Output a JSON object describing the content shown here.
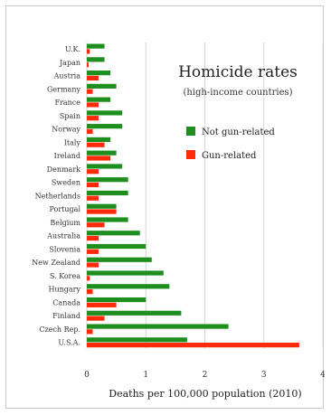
{
  "chart_data": {
    "type": "bar",
    "orientation": "horizontal",
    "title": "Homicide rates",
    "subtitle": "(high-income countries)",
    "xlabel": "Deaths per 100,000 population (2010)",
    "ylabel": "",
    "xlim": [
      0,
      4
    ],
    "x_ticks": [
      0,
      1,
      2,
      3,
      4
    ],
    "grid": "vertical",
    "legend_position": "top-right",
    "categories": [
      "U.K.",
      "Japan",
      "Austria",
      "Germany",
      "France",
      "Spain",
      "Norway",
      "Italy",
      "Ireland",
      "Denmark",
      "Sweden",
      "Netherlands",
      "Portugal",
      "Belgium",
      "Australia",
      "Slovenia",
      "New Zealand",
      "S. Korea",
      "Hungary",
      "Canada",
      "Finland",
      "Czech Rep.",
      "U.S.A."
    ],
    "series": [
      {
        "name": "Not gun-related",
        "color": "#1e8f1e",
        "values": [
          0.3,
          0.3,
          0.4,
          0.5,
          0.4,
          0.6,
          0.6,
          0.4,
          0.5,
          0.6,
          0.7,
          0.7,
          0.5,
          0.7,
          0.9,
          1.0,
          1.1,
          1.3,
          1.4,
          1.0,
          1.6,
          2.4,
          1.7
        ]
      },
      {
        "name": "Gun-related",
        "color": "#ff2a0a",
        "values": [
          0.05,
          0.03,
          0.2,
          0.1,
          0.2,
          0.2,
          0.1,
          0.3,
          0.4,
          0.2,
          0.2,
          0.2,
          0.5,
          0.3,
          0.2,
          0.2,
          0.2,
          0.05,
          0.1,
          0.5,
          0.3,
          0.1,
          3.6
        ]
      }
    ]
  }
}
